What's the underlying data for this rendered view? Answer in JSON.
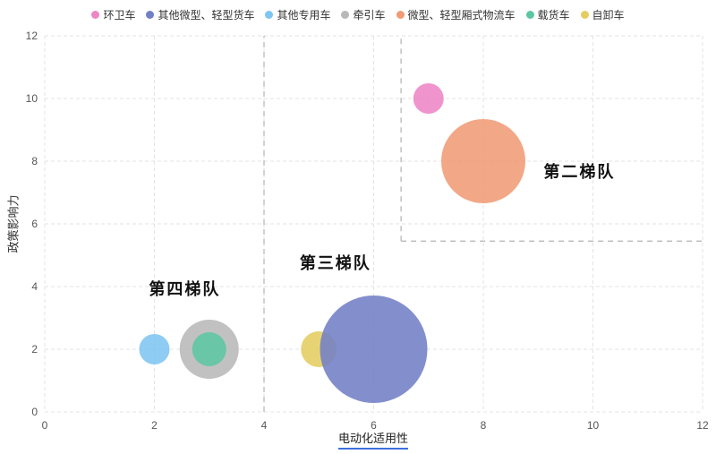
{
  "legend": {
    "items": [
      {
        "id": "sanitation-truck",
        "label": "环卫车",
        "color": "#ee85c6"
      },
      {
        "id": "other-mini-light-trucks",
        "label": "其他微型、轻型货车",
        "color": "#7280c6"
      },
      {
        "id": "other-special-vehicles",
        "label": "其他专用车",
        "color": "#7ec5f2"
      },
      {
        "id": "tractor-truck",
        "label": "牵引车",
        "color": "#b8b8b8"
      },
      {
        "id": "mini-light-box-logistics",
        "label": "微型、轻型厢式物流车",
        "color": "#f09b75"
      },
      {
        "id": "cargo-truck",
        "label": "载货车",
        "color": "#5cc6a2"
      },
      {
        "id": "dump-truck",
        "label": "自卸车",
        "color": "#e4cd60"
      }
    ]
  },
  "chart_data": {
    "type": "scatter",
    "title": "",
    "xlabel": "电动化适用性",
    "ylabel": "政策影响力",
    "xlim": [
      0,
      12
    ],
    "ylim": [
      0,
      12
    ],
    "xticks": [
      0,
      2,
      4,
      6,
      8,
      10,
      12
    ],
    "yticks": [
      0,
      2,
      4,
      6,
      8,
      10,
      12
    ],
    "grid": true,
    "legend_position": "top-center",
    "series": [
      {
        "id": "tractor-truck",
        "name": "牵引车",
        "x": 3,
        "y": 2,
        "radius_px": 33,
        "color": "#b8b8b8"
      },
      {
        "id": "cargo-truck",
        "name": "载货车",
        "x": 3,
        "y": 2,
        "radius_px": 19,
        "color": "#5cc6a2"
      },
      {
        "id": "other-special-vehicles",
        "name": "其他专用车",
        "x": 2,
        "y": 2,
        "radius_px": 17,
        "color": "#7ec5f2"
      },
      {
        "id": "dump-truck",
        "name": "自卸车",
        "x": 5,
        "y": 2,
        "radius_px": 20,
        "color": "#e4cd60"
      },
      {
        "id": "other-mini-light-trucks",
        "name": "其他微型、轻型货车",
        "x": 6,
        "y": 2,
        "radius_px": 60,
        "color": "#7280c6"
      },
      {
        "id": "mini-light-box-logistics",
        "name": "微型、轻型厢式物流车",
        "x": 8,
        "y": 8,
        "radius_px": 47,
        "color": "#f09b75"
      },
      {
        "id": "sanitation-truck",
        "name": "环卫车",
        "x": 7,
        "y": 10,
        "radius_px": 17,
        "color": "#ee85c6"
      }
    ],
    "annotations": [
      {
        "id": "tier-2",
        "text": "第二梯队",
        "x": 9.1,
        "y": 7.7
      },
      {
        "id": "tier-3",
        "text": "第三梯队",
        "x": 4.65,
        "y": 4.77
      },
      {
        "id": "tier-4",
        "text": "第四梯队",
        "x": 1.9,
        "y": 3.95
      }
    ],
    "region_lines": [
      {
        "x1": 4,
        "y1": 0,
        "x2": 4,
        "y2": 12
      },
      {
        "x1": 6.5,
        "y1": 5.45,
        "x2": 6.5,
        "y2": 12
      },
      {
        "x1": 6.5,
        "y1": 5.45,
        "x2": 12,
        "y2": 5.45
      }
    ],
    "colors": {
      "gridline": "#e3e3e3",
      "region_line": "#b3b3b3",
      "tick_text": "#555555",
      "annotation_text": "#111111",
      "xlabel_underline": "#3d6fe0"
    }
  }
}
